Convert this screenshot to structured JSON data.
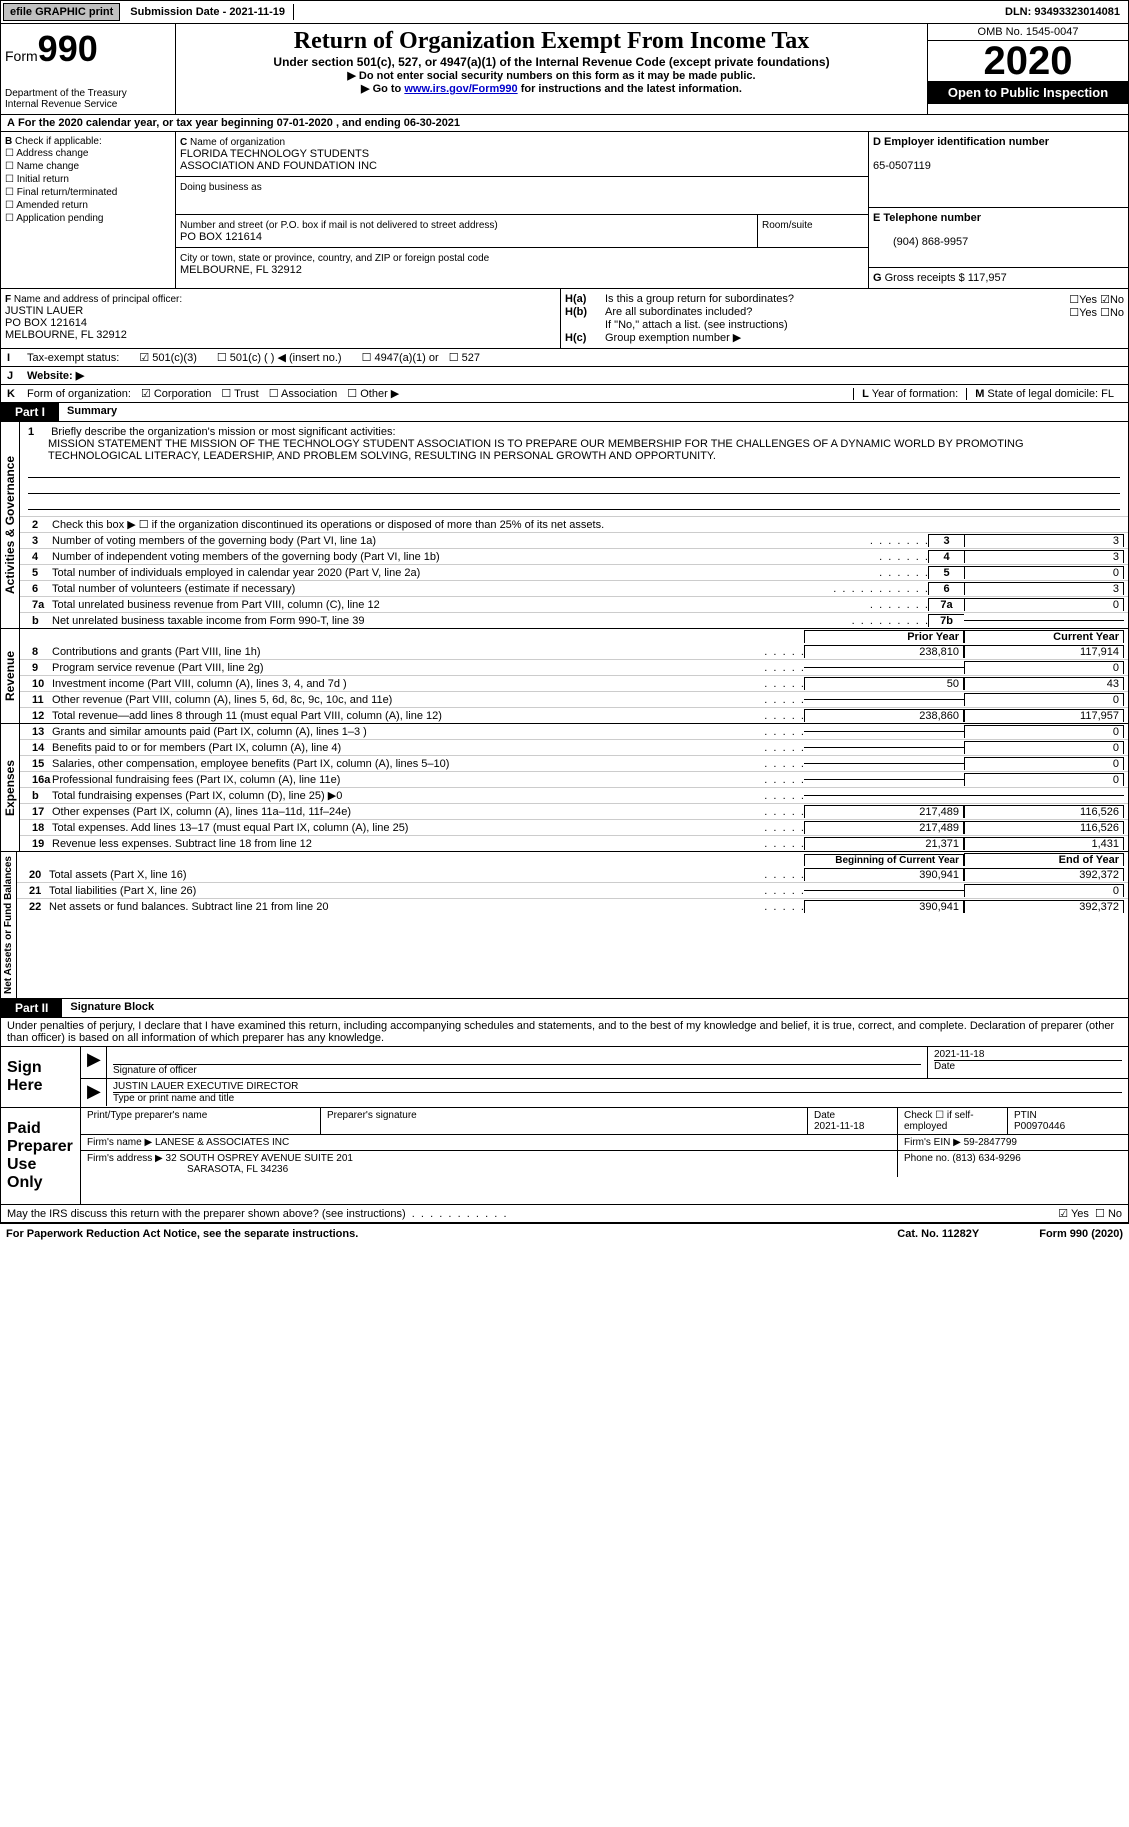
{
  "topbar": {
    "efile": "efile GRAPHIC print",
    "submission": "Submission Date - 2021-11-19",
    "dln": "DLN: 93493323014081"
  },
  "header": {
    "form_word": "Form",
    "form_num": "990",
    "dept1": "Department of the Treasury",
    "dept2": "Internal Revenue Service",
    "title": "Return of Organization Exempt From Income Tax",
    "subtitle": "Under section 501(c), 527, or 4947(a)(1) of the Internal Revenue Code (except private foundations)",
    "instr1": "▶ Do not enter social security numbers on this form as it may be made public.",
    "instr2_pre": "▶ Go to ",
    "instr2_link": "www.irs.gov/Form990",
    "instr2_post": " for instructions and the latest information.",
    "omb": "OMB No. 1545-0047",
    "year": "2020",
    "open": "Open to Public Inspection"
  },
  "section_a": "For the 2020 calendar year, or tax year beginning 07-01-2020    , and ending 06-30-2021",
  "section_b": {
    "header": "Check if applicable:",
    "items": [
      "Address change",
      "Name change",
      "Initial return",
      "Final return/terminated",
      "Amended return",
      "Application pending"
    ]
  },
  "section_c": {
    "label": "Name of organization",
    "name1": "FLORIDA TECHNOLOGY STUDENTS",
    "name2": "ASSOCIATION AND FOUNDATION INC",
    "dba_label": "Doing business as",
    "addr_label": "Number and street (or P.O. box if mail is not delivered to street address)",
    "room_label": "Room/suite",
    "addr": "PO BOX 121614",
    "city_label": "City or town, state or province, country, and ZIP or foreign postal code",
    "city": "MELBOURNE, FL  32912"
  },
  "section_d": {
    "label": "Employer identification number",
    "value": "65-0507119"
  },
  "section_e": {
    "label": "Telephone number",
    "value": "(904) 868-9957"
  },
  "section_g": {
    "label": "Gross receipts $",
    "value": "117,957"
  },
  "section_f": {
    "label": "Name and address of principal officer:",
    "name": "JUSTIN LAUER",
    "addr": "PO BOX 121614",
    "city": "MELBOURNE, FL  32912"
  },
  "section_h": {
    "a": "Is this a group return for subordinates?",
    "b": "Are all subordinates included?",
    "note": "If \"No,\" attach a list. (see instructions)",
    "c": "Group exemption number ▶"
  },
  "section_i": {
    "label": "Tax-exempt status:",
    "o1": "501(c)(3)",
    "o2": "501(c) (   ) ◀ (insert no.)",
    "o3": "4947(a)(1) or",
    "o4": "527"
  },
  "section_j": {
    "label": "Website: ▶"
  },
  "section_k": {
    "label": "Form of organization:",
    "o1": "Corporation",
    "o2": "Trust",
    "o3": "Association",
    "o4": "Other ▶"
  },
  "section_l": {
    "label": "Year of formation:"
  },
  "section_m": {
    "label": "State of legal domicile:",
    "value": "FL"
  },
  "part1": {
    "tab": "Part I",
    "title": "Summary"
  },
  "mission": {
    "num": "1",
    "label": "Briefly describe the organization's mission or most significant activities:",
    "text": "MISSION STATEMENT THE MISSION OF THE TECHNOLOGY STUDENT ASSOCIATION IS TO PREPARE OUR MEMBERSHIP FOR THE CHALLENGES OF A DYNAMIC WORLD BY PROMOTING TECHNOLOGICAL LITERACY, LEADERSHIP, AND PROBLEM SOLVING, RESULTING IN PERSONAL GROWTH AND OPPORTUNITY."
  },
  "governance": {
    "side": "Activities & Governance",
    "l2": "Check this box ▶ ☐  if the organization discontinued its operations or disposed of more than 25% of its net assets.",
    "l3": {
      "t": "Number of voting members of the governing body (Part VI, line 1a)",
      "n": "3",
      "v": "3"
    },
    "l4": {
      "t": "Number of independent voting members of the governing body (Part VI, line 1b)",
      "n": "4",
      "v": "3"
    },
    "l5": {
      "t": "Total number of individuals employed in calendar year 2020 (Part V, line 2a)",
      "n": "5",
      "v": "0"
    },
    "l6": {
      "t": "Total number of volunteers (estimate if necessary)",
      "n": "6",
      "v": "3"
    },
    "l7a": {
      "t": "Total unrelated business revenue from Part VIII, column (C), line 12",
      "n": "7a",
      "v": "0"
    },
    "l7b": {
      "t": "Net unrelated business taxable income from Form 990-T, line 39",
      "n": "7b",
      "v": ""
    }
  },
  "prior": "Prior Year",
  "current": "Current Year",
  "revenue": {
    "side": "Revenue",
    "rows": [
      {
        "n": "8",
        "t": "Contributions and grants (Part VIII, line 1h)",
        "p": "238,810",
        "c": "117,914"
      },
      {
        "n": "9",
        "t": "Program service revenue (Part VIII, line 2g)",
        "p": "",
        "c": "0"
      },
      {
        "n": "10",
        "t": "Investment income (Part VIII, column (A), lines 3, 4, and 7d )",
        "p": "50",
        "c": "43"
      },
      {
        "n": "11",
        "t": "Other revenue (Part VIII, column (A), lines 5, 6d, 8c, 9c, 10c, and 11e)",
        "p": "",
        "c": "0"
      },
      {
        "n": "12",
        "t": "Total revenue—add lines 8 through 11 (must equal Part VIII, column (A), line 12)",
        "p": "238,860",
        "c": "117,957"
      }
    ]
  },
  "expenses": {
    "side": "Expenses",
    "rows": [
      {
        "n": "13",
        "t": "Grants and similar amounts paid (Part IX, column (A), lines 1–3 )",
        "p": "",
        "c": "0"
      },
      {
        "n": "14",
        "t": "Benefits paid to or for members (Part IX, column (A), line 4)",
        "p": "",
        "c": "0"
      },
      {
        "n": "15",
        "t": "Salaries, other compensation, employee benefits (Part IX, column (A), lines 5–10)",
        "p": "",
        "c": "0"
      },
      {
        "n": "16a",
        "t": "Professional fundraising fees (Part IX, column (A), line 11e)",
        "p": "",
        "c": "0"
      },
      {
        "n": "b",
        "t": "Total fundraising expenses (Part IX, column (D), line 25) ▶0",
        "p": "grey",
        "c": "grey"
      },
      {
        "n": "17",
        "t": "Other expenses (Part IX, column (A), lines 11a–11d, 11f–24e)",
        "p": "217,489",
        "c": "116,526"
      },
      {
        "n": "18",
        "t": "Total expenses. Add lines 13–17 (must equal Part IX, column (A), line 25)",
        "p": "217,489",
        "c": "116,526"
      },
      {
        "n": "19",
        "t": "Revenue less expenses. Subtract line 18 from line 12",
        "p": "21,371",
        "c": "1,431"
      }
    ]
  },
  "begin": "Beginning of Current Year",
  "end": "End of Year",
  "balances": {
    "side": "Net Assets or Fund Balances",
    "rows": [
      {
        "n": "20",
        "t": "Total assets (Part X, line 16)",
        "p": "390,941",
        "c": "392,372"
      },
      {
        "n": "21",
        "t": "Total liabilities (Part X, line 26)",
        "p": "",
        "c": "0"
      },
      {
        "n": "22",
        "t": "Net assets or fund balances. Subtract line 21 from line 20",
        "p": "390,941",
        "c": "392,372"
      }
    ]
  },
  "part2": {
    "tab": "Part II",
    "title": "Signature Block"
  },
  "perjury": "Under penalties of perjury, I declare that I have examined this return, including accompanying schedules and statements, and to the best of my knowledge and belief, it is true, correct, and complete. Declaration of preparer (other than officer) is based on all information of which preparer has any knowledge.",
  "sign": {
    "label": "Sign Here",
    "sig": "Signature of officer",
    "date": "2021-11-18",
    "date_lbl": "Date",
    "name": "JUSTIN LAUER  EXECUTIVE DIRECTOR",
    "name_lbl": "Type or print name and title"
  },
  "paid": {
    "label": "Paid Preparer Use Only",
    "h1": "Print/Type preparer's name",
    "h2": "Preparer's signature",
    "h3": "Date",
    "date": "2021-11-18",
    "h4": "Check ☐ if self-employed",
    "h5": "PTIN",
    "ptin": "P00970446",
    "firm_lbl": "Firm's name    ▶",
    "firm": "LANESE & ASSOCIATES INC",
    "ein_lbl": "Firm's EIN ▶",
    "ein": "59-2847799",
    "addr_lbl": "Firm's address ▶",
    "addr1": "32 SOUTH OSPREY AVENUE SUITE 201",
    "addr2": "SARASOTA, FL  34236",
    "phone_lbl": "Phone no.",
    "phone": "(813) 634-9296"
  },
  "discuss": "May the IRS discuss this return with the preparer shown above? (see instructions)",
  "footer": {
    "left": "For Paperwork Reduction Act Notice, see the separate instructions.",
    "mid": "Cat. No. 11282Y",
    "right": "Form 990 (2020)"
  },
  "yesno": {
    "yes": "Yes",
    "no": "No"
  },
  "letters": {
    "A": "A",
    "B": "B",
    "C": "C",
    "D": "D",
    "E": "E",
    "F": "F",
    "G": "G",
    "H_a": "H(a)",
    "H_b": "H(b)",
    "H_c": "H(c)",
    "I": "I",
    "J": "J",
    "K": "K",
    "L": "L",
    "M": "M"
  }
}
